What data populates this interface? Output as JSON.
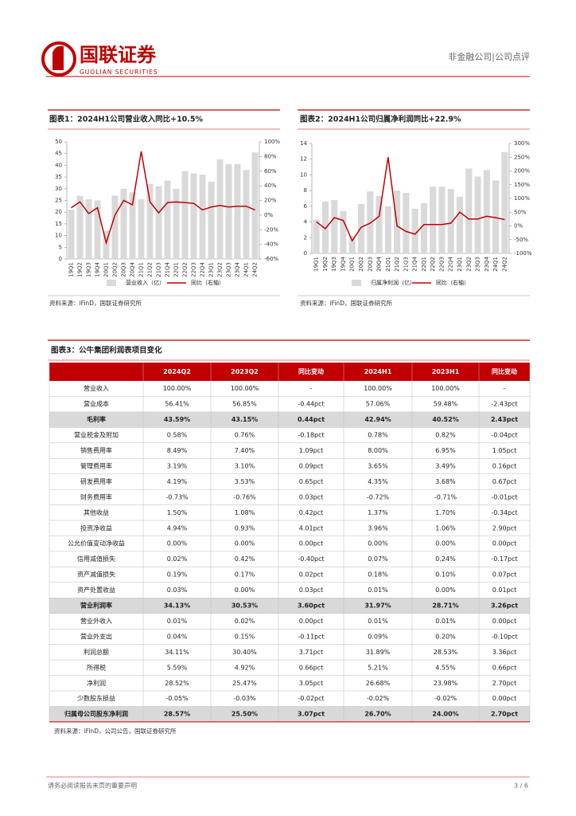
{
  "header": {
    "logo_cn": "国联证券",
    "logo_en": "GUOLIAN SECURITIES",
    "category": "非金融公司|公司点评"
  },
  "chart_data": [
    {
      "type": "bar",
      "title": "图表1：2024H1公司营业收入同比+10.5%",
      "source": "资料来源：iFinD，国联证券研究所",
      "categories": [
        "19Q1",
        "19Q2",
        "19Q3",
        "19Q4",
        "20Q1",
        "20Q2",
        "20Q3",
        "20Q4",
        "21Q1",
        "21Q2",
        "21Q3",
        "21Q4",
        "22Q1",
        "22Q2",
        "22Q3",
        "22Q4",
        "23Q1",
        "23Q2",
        "23Q3",
        "23Q4",
        "24Q1",
        "24Q2"
      ],
      "series": [
        {
          "name": "营业收入（亿）",
          "color": "#d9d9d9",
          "type": "bar",
          "values": [
            21,
            27,
            25.5,
            25,
            12,
            27,
            30,
            28.5,
            25.5,
            32,
            31,
            33.5,
            30,
            37.5,
            36.5,
            36,
            33,
            42.5,
            40.5,
            40.5,
            38,
            45.5
          ]
        },
        {
          "name": "同比（右轴）",
          "color": "#c00000",
          "type": "line",
          "axis": "y2",
          "values": [
            10,
            18,
            2,
            10,
            -38,
            0,
            20,
            14,
            87,
            18,
            3,
            17,
            18,
            17,
            16,
            7,
            11,
            13,
            11,
            12,
            12,
            7
          ]
        }
      ],
      "ylim": [
        0,
        50
      ],
      "yticks": [
        0,
        5,
        10,
        15,
        20,
        25,
        30,
        35,
        40,
        45,
        50
      ],
      "y2lim": [
        -60,
        100
      ],
      "y2ticks": [
        {
          "value": -60,
          "label": "-60%"
        },
        {
          "value": -40,
          "label": "-40%"
        },
        {
          "value": -20,
          "label": "-20%"
        },
        {
          "value": 0,
          "label": "0%"
        },
        {
          "value": 20,
          "label": "20%"
        },
        {
          "value": 40,
          "label": "40%"
        },
        {
          "value": 60,
          "label": "60%"
        },
        {
          "value": 80,
          "label": "80%"
        },
        {
          "value": 100,
          "label": "100%"
        }
      ]
    },
    {
      "type": "bar",
      "title": "图表2：2024H1公司归属净利润同比+22.9%",
      "source": "资料来源：iFinD，国联证券研究所",
      "categories": [
        "19Q1",
        "19Q2",
        "19Q3",
        "19Q4",
        "20Q1",
        "20Q2",
        "20Q3",
        "20Q4",
        "21Q1",
        "21Q2",
        "21Q3",
        "21Q4",
        "22Q1",
        "22Q2",
        "22Q3",
        "22Q4",
        "23Q1",
        "23Q2",
        "23Q3",
        "23Q4",
        "24Q1",
        "24Q2"
      ],
      "series": [
        {
          "name": "归属净利润（亿）",
          "color": "#d9d9d9",
          "type": "bar",
          "values": [
            4.3,
            6.6,
            6.8,
            5.4,
            2.2,
            6.3,
            7.9,
            7.3,
            6.0,
            8.0,
            7.7,
            5.7,
            6.4,
            8.5,
            8.5,
            8.2,
            7.2,
            10.8,
            9.8,
            10.6,
            9.3,
            12.9
          ]
        },
        {
          "name": "同比（右轴）",
          "color": "#c00000",
          "type": "line",
          "axis": "y2",
          "values": [
            15,
            -10,
            30,
            20,
            -54,
            -5,
            10,
            35,
            250,
            0,
            -20,
            -30,
            5,
            5,
            5,
            10,
            50,
            25,
            25,
            35,
            30,
            23
          ]
        }
      ],
      "ylim": [
        0,
        14
      ],
      "yticks": [
        0,
        2,
        4,
        6,
        8,
        10,
        12,
        14
      ],
      "y2lim": [
        -100,
        300
      ],
      "y2ticks": [
        {
          "value": -100,
          "label": "-100%"
        },
        {
          "value": -50,
          "label": "-50%"
        },
        {
          "value": 0,
          "label": "0%"
        },
        {
          "value": 50,
          "label": "50%"
        },
        {
          "value": 100,
          "label": "100%"
        },
        {
          "value": 150,
          "label": "150%"
        },
        {
          "value": 200,
          "label": "200%"
        },
        {
          "value": 250,
          "label": "250%"
        },
        {
          "value": 300,
          "label": "300%"
        }
      ]
    }
  ],
  "table": {
    "title": "图表3：公牛集团利润表项目变化",
    "source": "资料来源：iFinD，公司公告，国联证券研究所",
    "columns": [
      "2024Q2",
      "2023Q2",
      "同比变动",
      "2024H1",
      "2023H1",
      "同比变动"
    ],
    "rows": [
      {
        "label": "营业收入",
        "cells": [
          "100.00%",
          "100.00%",
          "-",
          "100.00%",
          "100.00%",
          "-"
        ]
      },
      {
        "label": "营业成本",
        "cells": [
          "56.41%",
          "56.85%",
          "-0.44pct",
          "57.06%",
          "59.48%",
          "-2.43pct"
        ]
      },
      {
        "label": "毛利率",
        "highlight": true,
        "cells": [
          "43.59%",
          "43.15%",
          "0.44pct",
          "42.94%",
          "40.52%",
          "2.43pct"
        ]
      },
      {
        "label": "营业税金及附加",
        "cells": [
          "0.58%",
          "0.76%",
          "-0.18pct",
          "0.78%",
          "0.82%",
          "-0.04pct"
        ]
      },
      {
        "label": "销售费用率",
        "cells": [
          "8.49%",
          "7.40%",
          "1.09pct",
          "8.00%",
          "6.95%",
          "1.05pct"
        ]
      },
      {
        "label": "管理费用率",
        "cells": [
          "3.19%",
          "3.10%",
          "0.09pct",
          "3.65%",
          "3.49%",
          "0.16pct"
        ]
      },
      {
        "label": "研发费用率",
        "cells": [
          "4.19%",
          "3.53%",
          "0.65pct",
          "4.35%",
          "3.68%",
          "0.67pct"
        ]
      },
      {
        "label": "财务费用率",
        "cells": [
          "-0.73%",
          "-0.76%",
          "0.03pct",
          "-0.72%",
          "-0.71%",
          "-0.01pct"
        ]
      },
      {
        "label": "其他收益",
        "cells": [
          "1.50%",
          "1.08%",
          "0.42pct",
          "1.37%",
          "1.70%",
          "-0.34pct"
        ]
      },
      {
        "label": "投资净收益",
        "cells": [
          "4.94%",
          "0.93%",
          "4.01pct",
          "3.96%",
          "1.06%",
          "2.90pct"
        ]
      },
      {
        "label": "公允价值变动净收益",
        "cells": [
          "0.00%",
          "0.00%",
          "0.00pct",
          "0.00%",
          "0.00%",
          "0.00pct"
        ]
      },
      {
        "label": "信用减值损失",
        "cells": [
          "0.02%",
          "0.42%",
          "-0.40pct",
          "0.07%",
          "0.24%",
          "-0.17pct"
        ]
      },
      {
        "label": "资产减值损失",
        "cells": [
          "0.19%",
          "0.17%",
          "0.02pct",
          "0.18%",
          "0.10%",
          "0.07pct"
        ]
      },
      {
        "label": "资产处置收益",
        "cells": [
          "0.03%",
          "0.00%",
          "0.03pct",
          "0.01%",
          "0.00%",
          "0.01pct"
        ]
      },
      {
        "label": "营业利润率",
        "highlight": true,
        "cells": [
          "34.13%",
          "30.53%",
          "3.60pct",
          "31.97%",
          "28.71%",
          "3.26pct"
        ]
      },
      {
        "label": "营业外收入",
        "cells": [
          "0.01%",
          "0.02%",
          "0.00pct",
          "0.01%",
          "0.01%",
          "0.00pct"
        ]
      },
      {
        "label": "营业外支出",
        "cells": [
          "0.04%",
          "0.15%",
          "-0.11pct",
          "0.09%",
          "0.20%",
          "-0.10pct"
        ]
      },
      {
        "label": "利润总额",
        "cells": [
          "34.11%",
          "30.40%",
          "3.71pct",
          "31.89%",
          "28.53%",
          "3.36pct"
        ]
      },
      {
        "label": "所得税",
        "cells": [
          "5.59%",
          "4.92%",
          "0.66pct",
          "5.21%",
          "4.55%",
          "0.66pct"
        ]
      },
      {
        "label": "净利润",
        "cells": [
          "28.52%",
          "25.47%",
          "3.05pct",
          "26.68%",
          "23.98%",
          "2.70pct"
        ]
      },
      {
        "label": "少数股东损益",
        "cells": [
          "-0.05%",
          "-0.03%",
          "-0.02pct",
          "-0.02%",
          "-0.02%",
          "0.00pct"
        ]
      },
      {
        "label": "归属母公司股东净利润",
        "highlight": true,
        "cells": [
          "28.57%",
          "25.50%",
          "3.07pct",
          "26.70%",
          "24.00%",
          "2.70pct"
        ]
      }
    ]
  },
  "footer": {
    "note": "请务必阅读报告末页的重要声明",
    "page": "3 / 6"
  }
}
